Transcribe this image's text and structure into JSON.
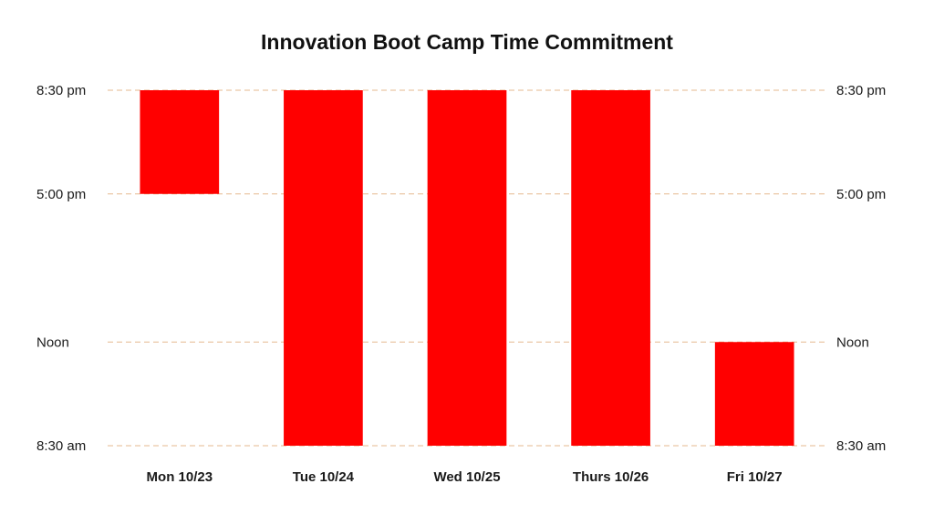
{
  "chart_data": {
    "type": "bar",
    "subtype": "floating-range",
    "title": "Innovation Boot Camp Time Commitment",
    "xlabel": "",
    "ylabel": "",
    "categories": [
      "Mon 10/23",
      "Tue 10/24",
      "Wed 10/25",
      "Thurs 10/26",
      "Fri 10/27"
    ],
    "ranges": [
      {
        "start": 17.0,
        "end": 20.5
      },
      {
        "start": 8.5,
        "end": 20.5
      },
      {
        "start": 8.5,
        "end": 20.5
      },
      {
        "start": 8.5,
        "end": 20.5
      },
      {
        "start": 8.5,
        "end": 12.0
      }
    ],
    "y_ticks": [
      {
        "value": 20.5,
        "label": "8:30 pm"
      },
      {
        "value": 17.0,
        "label": "5:00 pm"
      },
      {
        "value": 12.0,
        "label": "Noon"
      },
      {
        "value": 8.5,
        "label": "8:30 am"
      }
    ],
    "ylim": [
      8.5,
      20.5
    ],
    "y_axis_sides": [
      "left",
      "right"
    ],
    "grid": true,
    "legend": "none",
    "colors": {
      "bar": "#ff0000",
      "grid": "#e6b98f"
    }
  }
}
